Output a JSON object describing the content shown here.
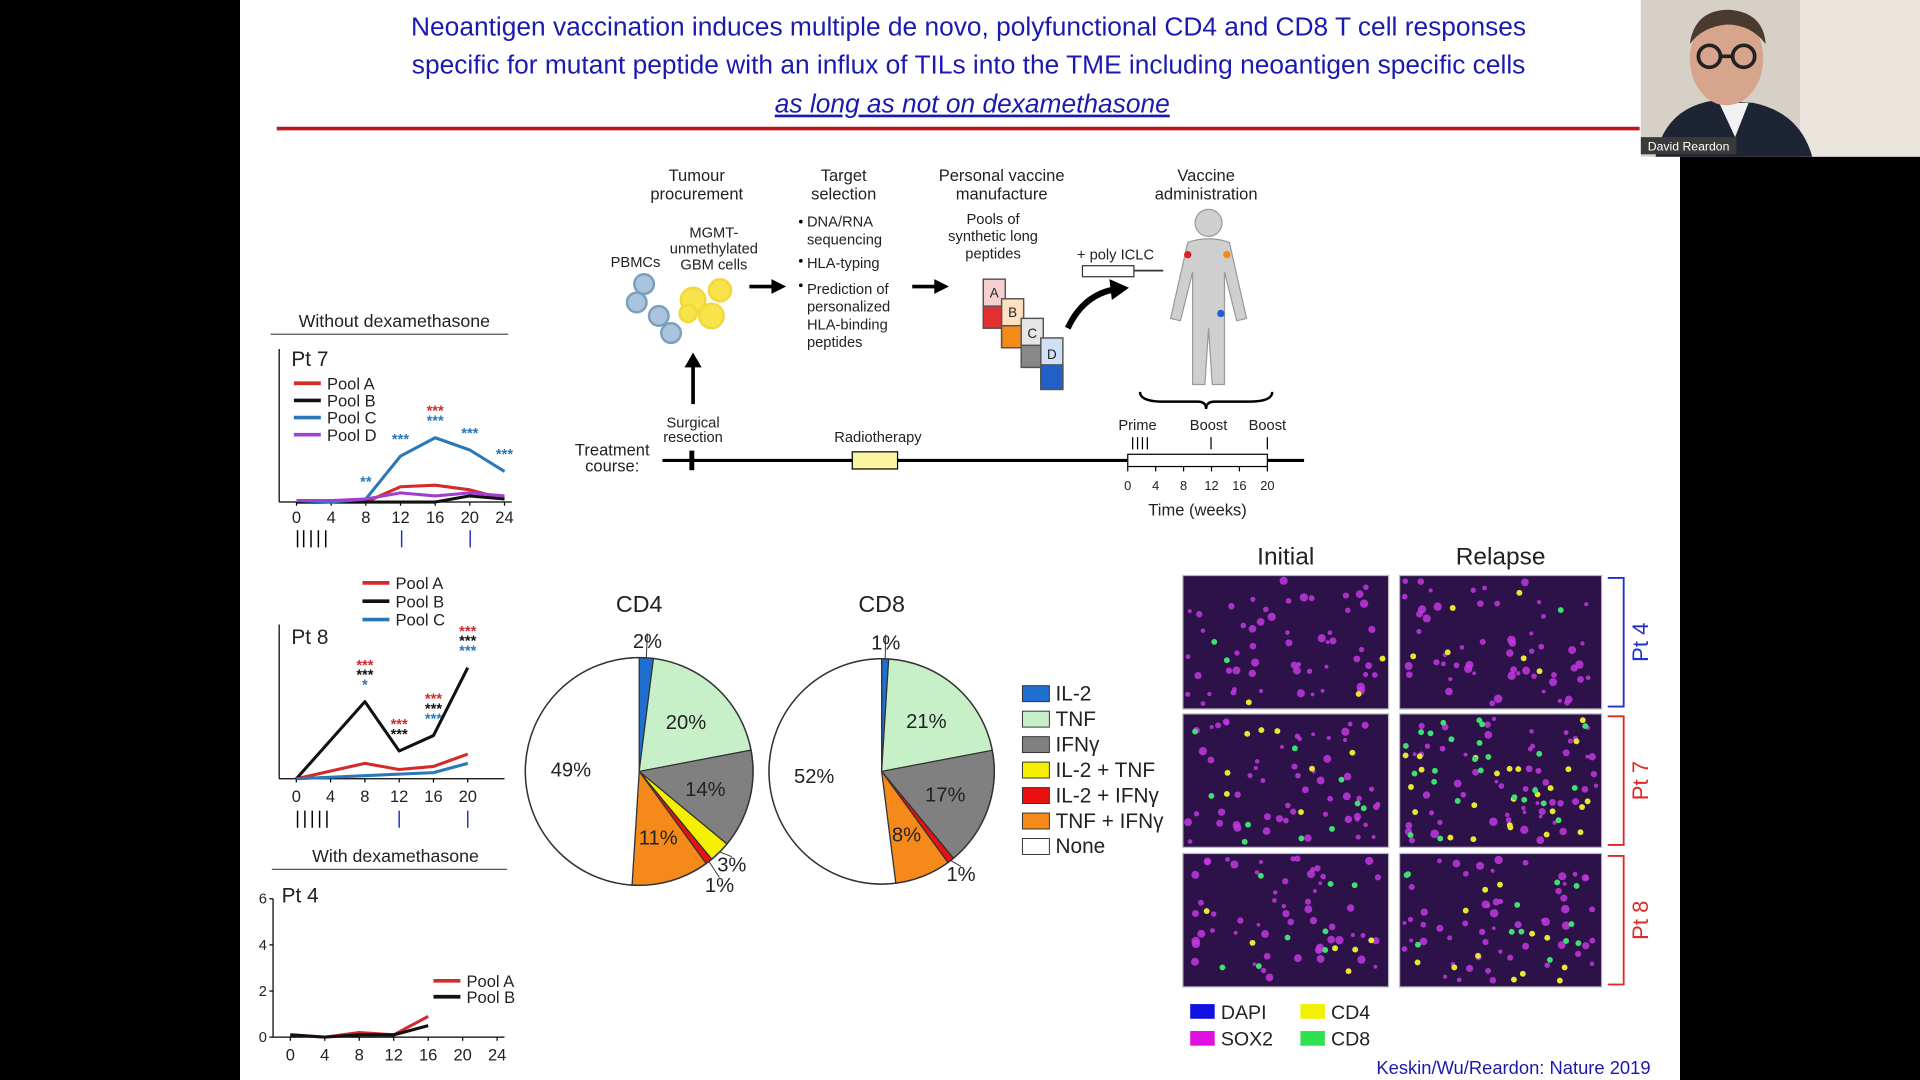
{
  "slide": {
    "title_lines": [
      "Neoantigen vaccination induces multiple de novo, polyfunctional CD4 and CD8 T cell responses",
      "specific for mutant peptide with an influx of TILs into the TME including neoantigen specific cells"
    ],
    "title_emphasis": "as long as not on dexamethasone",
    "citation": "Keskin/Wu/Reardon: Nature 2019"
  },
  "participant": {
    "name": "David Reardon"
  },
  "schematic": {
    "headers": [
      [
        "Tumour",
        "procurement"
      ],
      [
        "Target",
        "selection"
      ],
      [
        "Personal vaccine",
        "manufacture"
      ],
      [
        "Vaccine",
        "administration"
      ]
    ],
    "pbmcs": "PBMCs",
    "gbm_cells": [
      "MGMT-",
      "unmethylated",
      "GBM cells"
    ],
    "bullets": [
      [
        "DNA/RNA",
        "sequencing"
      ],
      [
        "HLA-typing"
      ],
      [
        "Prediction of",
        "personalized",
        "HLA-binding",
        "peptides"
      ]
    ],
    "pools": [
      "Pools of",
      "synthetic long",
      "peptides"
    ],
    "adjuvant": "+ poly ICLC",
    "tubes": [
      "A",
      "B",
      "C",
      "D"
    ],
    "surgery": [
      "Surgical",
      "resection"
    ],
    "treatment": [
      "Treatment",
      "course:"
    ],
    "radiotherapy": "Radiotherapy",
    "events": [
      "Prime",
      "Boost",
      "Boost"
    ],
    "weeks": [
      "0",
      "4",
      "8",
      "12",
      "16",
      "20"
    ],
    "time_label": "Time (weeks)"
  },
  "line_panels": {
    "headers": [
      "Without dexamethasone",
      "With dexamethasone"
    ],
    "panels": [
      {
        "label": "Pt 7",
        "x": [
          0,
          4,
          8,
          12,
          16,
          20,
          24
        ],
        "xlim": [
          -2,
          24
        ],
        "ylim": [
          0,
          5
        ],
        "xticks": [
          0,
          4,
          8,
          12,
          16,
          20,
          24
        ],
        "series": [
          {
            "name": "Pool A",
            "color": "#d42a2a",
            "values": [
              0,
              0,
              0,
              0.5,
              0.55,
              0.4,
              0.1
            ]
          },
          {
            "name": "Pool B",
            "color": "#111111",
            "values": [
              0,
              0,
              0,
              0,
              0,
              0.2,
              0.1
            ]
          },
          {
            "name": "Pool C",
            "color": "#2b78b8",
            "values": [
              0.05,
              0,
              0.1,
              1.5,
              2.1,
              1.7,
              1.0
            ]
          },
          {
            "name": "Pool D",
            "color": "#a040d0",
            "values": [
              0.05,
              0.05,
              0.1,
              0.3,
              0.2,
              0.3,
              0.2
            ]
          }
        ],
        "annotations": [
          {
            "x": 8,
            "stars": [
              {
                "text": "**",
                "color": "#2b78b8"
              }
            ]
          },
          {
            "x": 12,
            "stars": [
              {
                "text": "***",
                "color": "#2b78b8"
              }
            ]
          },
          {
            "x": 16,
            "stars": [
              {
                "text": "***",
                "color": "#2b78b8"
              },
              {
                "text": "***",
                "color": "#d42a2a"
              }
            ]
          },
          {
            "x": 20,
            "stars": [
              {
                "text": "***",
                "color": "#2b78b8"
              }
            ]
          },
          {
            "x": 24,
            "stars": [
              {
                "text": "***",
                "color": "#2b78b8"
              }
            ]
          }
        ]
      },
      {
        "label": "Pt 8",
        "x": [
          0,
          8,
          12,
          16,
          20
        ],
        "xlim": [
          -2,
          20
        ],
        "ylim": [
          0,
          5
        ],
        "xticks": [
          0,
          4,
          8,
          12,
          16,
          20
        ],
        "series": [
          {
            "name": "Pool A",
            "color": "#d42a2a",
            "values": [
              0,
              0.5,
              0.3,
              0.4,
              0.8
            ]
          },
          {
            "name": "Pool B",
            "color": "#111111",
            "values": [
              0,
              2.5,
              0.9,
              1.4,
              3.6
            ]
          },
          {
            "name": "Pool C",
            "color": "#2b78b8",
            "values": [
              0,
              0.1,
              0.15,
              0.2,
              0.5
            ]
          }
        ],
        "annotations": [
          {
            "x": 8,
            "stars": [
              {
                "text": "*",
                "color": "#2b78b8"
              },
              {
                "text": "***",
                "color": "#111111"
              },
              {
                "text": "***",
                "color": "#d42a2a"
              }
            ]
          },
          {
            "x": 12,
            "stars": [
              {
                "text": "***",
                "color": "#111111"
              },
              {
                "text": "***",
                "color": "#d42a2a"
              }
            ]
          },
          {
            "x": 16,
            "stars": [
              {
                "text": "***",
                "color": "#2b78b8"
              },
              {
                "text": "***",
                "color": "#111111"
              },
              {
                "text": "***",
                "color": "#d42a2a"
              }
            ]
          },
          {
            "x": 20,
            "stars": [
              {
                "text": "***",
                "color": "#2b78b8"
              },
              {
                "text": "***",
                "color": "#111111"
              },
              {
                "text": "***",
                "color": "#d42a2a"
              }
            ]
          }
        ]
      },
      {
        "label": "Pt 4",
        "x": [
          0,
          4,
          8,
          12,
          16
        ],
        "xlim": [
          -2,
          24
        ],
        "ylim": [
          0,
          6
        ],
        "xticks": [
          0,
          4,
          8,
          12,
          16,
          20,
          24
        ],
        "yticks": [
          0,
          2,
          4,
          6
        ],
        "series": [
          {
            "name": "Pool A",
            "color": "#d42a2a",
            "values": [
              0.1,
              0,
              0.2,
              0.1,
              0.9
            ]
          },
          {
            "name": "Pool B",
            "color": "#111111",
            "values": [
              0.1,
              0,
              0.1,
              0.1,
              0.5
            ]
          }
        ],
        "annotations": []
      }
    ]
  },
  "pie_legend": [
    {
      "name": "IL-2",
      "color": "#1f6fd0"
    },
    {
      "name": "TNF",
      "color": "#c8f0c8"
    },
    {
      "name": "IFNγ",
      "color": "#808080"
    },
    {
      "name": "IL-2 + TNF",
      "color": "#f5f000"
    },
    {
      "name": "IL-2 + IFNγ",
      "color": "#e81010"
    },
    {
      "name": "TNF + IFNγ",
      "color": "#f58a1a"
    },
    {
      "name": "None",
      "color": "#ffffff"
    }
  ],
  "pies": [
    {
      "title": "CD4",
      "values": [
        2,
        20,
        14,
        3,
        1,
        11,
        49
      ],
      "value_labels": [
        "2%",
        "20%",
        "14%",
        "3%",
        "1%",
        "11%",
        "49%"
      ]
    },
    {
      "title": "CD8",
      "values": [
        1,
        21,
        17,
        null,
        1,
        8,
        52
      ],
      "value_labels": [
        "1%",
        "21%",
        "17%",
        null,
        "1%",
        "8%",
        "52%"
      ]
    }
  ],
  "microscopy": {
    "columns": [
      "Initial",
      "Relapse"
    ],
    "rows": [
      {
        "label": "Pt 4",
        "color": "#2030d0"
      },
      {
        "label": "Pt 7",
        "color": "#e02828"
      },
      {
        "label": "Pt 8",
        "color": "#e02828"
      }
    ],
    "legend": [
      {
        "name": "DAPI",
        "color": "#1010e0"
      },
      {
        "name": "SOX2",
        "color": "#e010e0"
      },
      {
        "name": "CD4",
        "color": "#f0f000"
      },
      {
        "name": "CD8",
        "color": "#30e050"
      }
    ]
  }
}
